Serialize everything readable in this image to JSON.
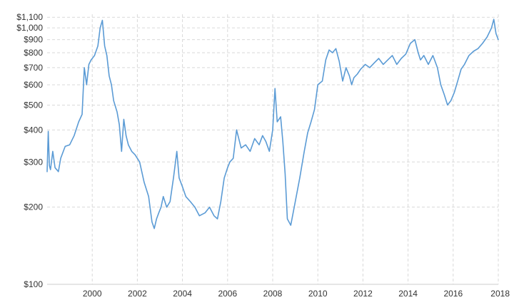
{
  "chart_data": {
    "type": "line",
    "title": "",
    "xlabel": "",
    "ylabel": "",
    "y_scale": "log",
    "xlim": [
      1998.0,
      2018.0
    ],
    "ylim": [
      100,
      1130
    ],
    "grid": true,
    "x_ticks": [
      {
        "value": 2000,
        "label": "2000"
      },
      {
        "value": 2002,
        "label": "2002"
      },
      {
        "value": 2004,
        "label": "2004"
      },
      {
        "value": 2006,
        "label": "2006"
      },
      {
        "value": 2008,
        "label": "2008"
      },
      {
        "value": 2010,
        "label": "2010"
      },
      {
        "value": 2012,
        "label": "2012"
      },
      {
        "value": 2014,
        "label": "2014"
      },
      {
        "value": 2016,
        "label": "2016"
      },
      {
        "value": 2018,
        "label": "2018"
      }
    ],
    "y_ticks": [
      {
        "value": 100,
        "label": "$100"
      },
      {
        "value": 200,
        "label": "$200"
      },
      {
        "value": 300,
        "label": "$300"
      },
      {
        "value": 400,
        "label": "$400"
      },
      {
        "value": 500,
        "label": "$500"
      },
      {
        "value": 600,
        "label": "$600"
      },
      {
        "value": 700,
        "label": "$700"
      },
      {
        "value": 800,
        "label": "$800"
      },
      {
        "value": 900,
        "label": "$900"
      },
      {
        "value": 1000,
        "label": "$1,000"
      },
      {
        "value": 1100,
        "label": "$1,100"
      }
    ],
    "series": [
      {
        "color": "#5b9bd5",
        "x": [
          1998.0,
          1998.05,
          1998.1,
          1998.15,
          1998.25,
          1998.35,
          1998.5,
          1998.6,
          1998.8,
          1999.0,
          1999.2,
          1999.4,
          1999.55,
          1999.65,
          1999.75,
          1999.85,
          1999.95,
          2000.1,
          2000.25,
          2000.35,
          2000.45,
          2000.55,
          2000.65,
          2000.75,
          2000.85,
          2000.95,
          2001.1,
          2001.2,
          2001.3,
          2001.4,
          2001.5,
          2001.6,
          2001.75,
          2001.9,
          2002.1,
          2002.3,
          2002.5,
          2002.65,
          2002.75,
          2002.85,
          2002.95,
          2003.05,
          2003.15,
          2003.3,
          2003.45,
          2003.6,
          2003.75,
          2003.85,
          2004.0,
          2004.15,
          2004.35,
          2004.55,
          2004.75,
          2005.0,
          2005.2,
          2005.4,
          2005.55,
          2005.7,
          2005.85,
          2006.0,
          2006.1,
          2006.25,
          2006.4,
          2006.6,
          2006.8,
          2007.0,
          2007.2,
          2007.4,
          2007.55,
          2007.7,
          2007.85,
          2008.0,
          2008.1,
          2008.2,
          2008.35,
          2008.45,
          2008.55,
          2008.65,
          2008.8,
          2009.0,
          2009.2,
          2009.4,
          2009.55,
          2009.7,
          2009.85,
          2010.0,
          2010.2,
          2010.35,
          2010.5,
          2010.65,
          2010.8,
          2010.95,
          2011.1,
          2011.25,
          2011.4,
          2011.5,
          2011.6,
          2011.75,
          2011.9,
          2012.1,
          2012.3,
          2012.5,
          2012.7,
          2012.9,
          2013.1,
          2013.3,
          2013.5,
          2013.7,
          2013.9,
          2014.1,
          2014.3,
          2014.45,
          2014.55,
          2014.7,
          2014.9,
          2015.1,
          2015.3,
          2015.45,
          2015.6,
          2015.75,
          2015.9,
          2016.05,
          2016.2,
          2016.35,
          2016.5,
          2016.7,
          2016.9,
          2017.1,
          2017.3,
          2017.5,
          2017.7,
          2017.8,
          2017.9,
          2018.0
        ],
        "values": [
          275,
          395,
          290,
          280,
          330,
          285,
          275,
          310,
          345,
          350,
          380,
          430,
          460,
          700,
          600,
          720,
          750,
          780,
          850,
          1000,
          1070,
          850,
          780,
          650,
          600,
          520,
          470,
          420,
          330,
          440,
          380,
          350,
          330,
          320,
          300,
          250,
          220,
          175,
          165,
          180,
          190,
          200,
          220,
          200,
          210,
          260,
          330,
          260,
          240,
          220,
          210,
          200,
          185,
          190,
          200,
          185,
          180,
          210,
          260,
          285,
          300,
          310,
          400,
          340,
          350,
          330,
          370,
          350,
          380,
          360,
          330,
          400,
          580,
          430,
          450,
          360,
          270,
          180,
          170,
          210,
          260,
          330,
          390,
          430,
          480,
          600,
          620,
          750,
          820,
          800,
          830,
          740,
          620,
          700,
          650,
          600,
          640,
          660,
          690,
          720,
          700,
          730,
          760,
          720,
          750,
          780,
          720,
          760,
          790,
          870,
          900,
          800,
          750,
          780,
          720,
          780,
          700,
          600,
          550,
          500,
          520,
          560,
          620,
          690,
          720,
          780,
          810,
          830,
          870,
          920,
          1000,
          1080,
          950,
          900
        ]
      }
    ]
  }
}
